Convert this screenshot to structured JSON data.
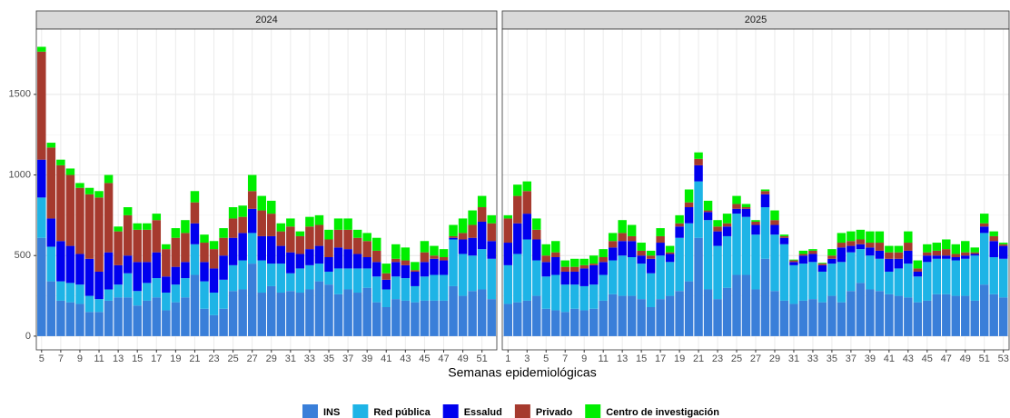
{
  "chart_data": {
    "type": "bar",
    "stacked": true,
    "xlabel": "Semanas epidemiológicas",
    "ylim": [
      -85,
      1905
    ],
    "yticks": [
      0,
      500,
      1000,
      1500
    ],
    "grid": true,
    "series": [
      {
        "name": "INS",
        "color": "#3a7fd9"
      },
      {
        "name": "Red pública",
        "color": "#1eb4e6"
      },
      {
        "name": "Essalud",
        "color": "#0000ee"
      },
      {
        "name": "Privado",
        "color": "#a63a2e"
      },
      {
        "name": "Centro de investigación",
        "color": "#00ee00"
      }
    ],
    "facets": [
      {
        "title": "2024",
        "xlim": [
          4.45,
          52.55
        ],
        "xticks": [
          5,
          7,
          9,
          11,
          13,
          15,
          17,
          19,
          21,
          23,
          25,
          27,
          29,
          31,
          33,
          35,
          37,
          39,
          41,
          43,
          45,
          47,
          49,
          51
        ],
        "x": [
          5,
          6,
          7,
          8,
          9,
          10,
          11,
          12,
          13,
          14,
          15,
          16,
          17,
          18,
          19,
          20,
          21,
          22,
          23,
          24,
          25,
          26,
          27,
          28,
          29,
          30,
          31,
          32,
          33,
          34,
          35,
          36,
          37,
          38,
          39,
          40,
          41,
          42,
          43,
          44,
          45,
          46,
          47,
          48,
          49,
          50,
          51,
          52
        ],
        "series": [
          {
            "values": [
              610,
              340,
              220,
              210,
              200,
              150,
              150,
              220,
              240,
              240,
              190,
              220,
              240,
              160,
              210,
              240,
              380,
              170,
              130,
              170,
              280,
              290,
              450,
              270,
              310,
              270,
              280,
              270,
              290,
              340,
              320,
              260,
              290,
              270,
              300,
              210,
              180,
              230,
              220,
              210,
              220,
              220,
              220,
              310,
              250,
              280,
              290,
              230
            ]
          },
          {
            "values": [
              250,
              215,
              120,
              120,
              120,
              100,
              80,
              70,
              80,
              150,
              90,
              110,
              120,
              110,
              110,
              120,
              190,
              170,
              140,
              180,
              160,
              180,
              190,
              200,
              140,
              180,
              110,
              150,
              150,
              110,
              80,
              160,
              130,
              150,
              120,
              160,
              110,
              140,
              140,
              100,
              150,
              160,
              160,
              290,
              260,
              220,
              250,
              250
            ]
          },
          {
            "values": [
              235,
              175,
              250,
              230,
              190,
              230,
              170,
              230,
              120,
              110,
              180,
              130,
              160,
              100,
              110,
              100,
              130,
              120,
              150,
              150,
              170,
              170,
              150,
              150,
              170,
              110,
              130,
              90,
              100,
              110,
              90,
              130,
              120,
              90,
              70,
              90,
              60,
              90,
              80,
              90,
              90,
              100,
              90,
              10,
              90,
              110,
              170,
              110
            ]
          },
          {
            "values": [
              670,
              440,
              470,
              440,
              410,
              400,
              460,
              430,
              210,
              250,
              200,
              200,
              200,
              170,
              180,
              180,
              130,
              120,
              120,
              110,
              120,
              100,
              110,
              160,
              140,
              90,
              160,
              110,
              140,
              130,
              110,
              110,
              120,
              100,
              100,
              70,
              40,
              20,
              30,
              10,
              60,
              20,
              20,
              10,
              40,
              80,
              90,
              110
            ]
          },
          {
            "values": [
              30,
              30,
              35,
              40,
              30,
              40,
              40,
              50,
              30,
              50,
              40,
              40,
              40,
              30,
              60,
              80,
              70,
              50,
              50,
              60,
              70,
              70,
              100,
              90,
              80,
              50,
              50,
              30,
              60,
              60,
              60,
              70,
              70,
              50,
              50,
              80,
              60,
              90,
              80,
              50,
              70,
              60,
              50,
              70,
              90,
              90,
              70,
              50
            ]
          }
        ]
      },
      {
        "title": "2025",
        "xlim": [
          0.4,
          53.6
        ],
        "xticks": [
          1,
          3,
          5,
          7,
          9,
          11,
          13,
          15,
          17,
          19,
          21,
          23,
          25,
          27,
          29,
          31,
          33,
          35,
          37,
          39,
          41,
          43,
          45,
          47,
          49,
          51,
          53
        ],
        "x": [
          1,
          2,
          3,
          4,
          5,
          6,
          7,
          8,
          9,
          10,
          11,
          12,
          13,
          14,
          15,
          16,
          17,
          18,
          19,
          20,
          21,
          22,
          23,
          24,
          25,
          26,
          27,
          28,
          29,
          30,
          31,
          32,
          33,
          34,
          35,
          36,
          37,
          38,
          39,
          40,
          41,
          42,
          43,
          44,
          45,
          46,
          47,
          48,
          49,
          50,
          51,
          52,
          53
        ],
        "series": [
          {
            "values": [
              200,
              210,
              220,
              250,
              170,
              160,
              150,
              170,
              160,
              170,
              220,
              260,
              250,
              250,
              230,
              180,
              230,
              250,
              280,
              340,
              610,
              290,
              230,
              300,
              380,
              380,
              290,
              480,
              280,
              220,
              200,
              220,
              230,
              210,
              250,
              210,
              280,
              330,
              290,
              280,
              260,
              250,
              240,
              210,
              220,
              260,
              260,
              250,
              250,
              220,
              320,
              260,
              240
            ]
          },
          {
            "values": [
              240,
              300,
              380,
              220,
              200,
              220,
              170,
              150,
              150,
              150,
              160,
              210,
              250,
              240,
              220,
              210,
              270,
              210,
              330,
              360,
              350,
              430,
              330,
              320,
              380,
              360,
              340,
              320,
              350,
              350,
              240,
              230,
              230,
              190,
              200,
              250,
              240,
              210,
              210,
              200,
              140,
              170,
              210,
              160,
              240,
              220,
              220,
              220,
              230,
              280,
              320,
              230,
              240
            ]
          },
          {
            "values": [
              140,
              190,
              160,
              130,
              90,
              110,
              80,
              80,
              110,
              120,
              80,
              80,
              90,
              100,
              50,
              90,
              80,
              50,
              70,
              100,
              100,
              50,
              90,
              60,
              30,
              50,
              60,
              80,
              60,
              40,
              20,
              50,
              50,
              40,
              30,
              90,
              40,
              30,
              50,
              50,
              80,
              60,
              80,
              30,
              40,
              20,
              20,
              20,
              20,
              10,
              40,
              100,
              80
            ]
          },
          {
            "values": [
              150,
              170,
              140,
              60,
              40,
              30,
              30,
              30,
              20,
              10,
              30,
              40,
              50,
              30,
              30,
              20,
              40,
              10,
              20,
              30,
              40,
              10,
              30,
              20,
              30,
              10,
              20,
              20,
              30,
              10,
              10,
              10,
              20,
              10,
              20,
              30,
              30,
              30,
              30,
              50,
              40,
              40,
              50,
              20,
              20,
              30,
              40,
              20,
              20,
              10,
              20,
              30,
              10
            ]
          },
          {
            "values": [
              20,
              70,
              60,
              70,
              70,
              70,
              40,
              50,
              40,
              50,
              50,
              50,
              80,
              70,
              50,
              30,
              50,
              40,
              50,
              80,
              40,
              60,
              40,
              60,
              50,
              20,
              10,
              10,
              60,
              10,
              5,
              20,
              10,
              5,
              40,
              60,
              60,
              60,
              70,
              70,
              40,
              40,
              70,
              50,
              50,
              50,
              60,
              60,
              70,
              30,
              60,
              30,
              10
            ]
          }
        ]
      }
    ]
  }
}
